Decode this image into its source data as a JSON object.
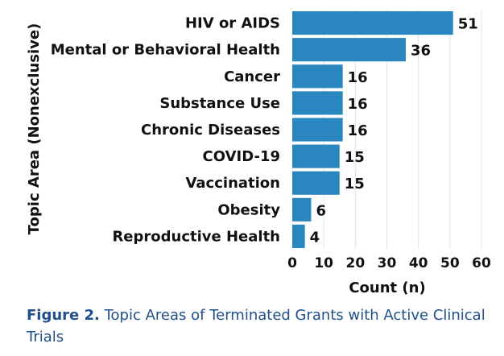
{
  "chart_data": {
    "type": "bar",
    "orientation": "horizontal",
    "categories": [
      "HIV or AIDS",
      "Mental or Behavioral Health",
      "Cancer",
      "Substance Use",
      "Chronic Diseases",
      "COVID-19",
      "Vaccination",
      "Obesity",
      "Reproductive Health"
    ],
    "values": [
      51,
      36,
      16,
      16,
      16,
      15,
      15,
      6,
      4
    ],
    "xlabel": "Count (n)",
    "ylabel": "Topic Area (Nonexclusive)",
    "xlim": [
      0,
      60
    ],
    "xticks": [
      0,
      10,
      20,
      30,
      40,
      50,
      60
    ],
    "grid": "vertical",
    "bar_color": "#2a86bf"
  },
  "caption": {
    "label": "Figure 2.",
    "text": " Topic Areas of Terminated Grants with Active Clinical Trials",
    "color": "#1f4f8c"
  }
}
